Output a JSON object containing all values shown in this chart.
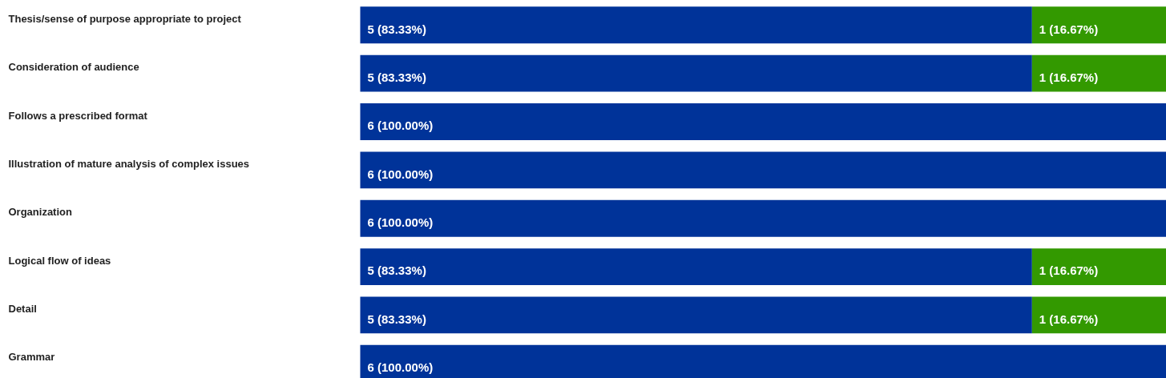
{
  "chart_data": {
    "type": "bar",
    "orientation": "horizontal",
    "stacked": true,
    "categories": [
      "Thesis/sense of purpose appropriate to project",
      "Consideration of audience",
      "Follows a prescribed format",
      "Illustration of mature analysis of complex issues",
      "Organization",
      "Logical flow of ideas",
      "Detail",
      "Grammar"
    ],
    "series": [
      {
        "color": "#003399",
        "values": [
          5,
          5,
          6,
          6,
          6,
          5,
          5,
          6
        ],
        "value_labels": [
          "5 (83.33%)",
          "5 (83.33%)",
          "6 (100.00%)",
          "6 (100.00%)",
          "6 (100.00%)",
          "5 (83.33%)",
          "5 (83.33%)",
          "6 (100.00%)"
        ]
      },
      {
        "color": "#339900",
        "values": [
          1,
          1,
          null,
          null,
          null,
          1,
          1,
          null
        ],
        "value_labels": [
          "1 (16.67%)",
          "1 (16.67%)",
          null,
          null,
          null,
          "1 (16.67%)",
          "1 (16.67%)",
          null
        ]
      }
    ]
  }
}
